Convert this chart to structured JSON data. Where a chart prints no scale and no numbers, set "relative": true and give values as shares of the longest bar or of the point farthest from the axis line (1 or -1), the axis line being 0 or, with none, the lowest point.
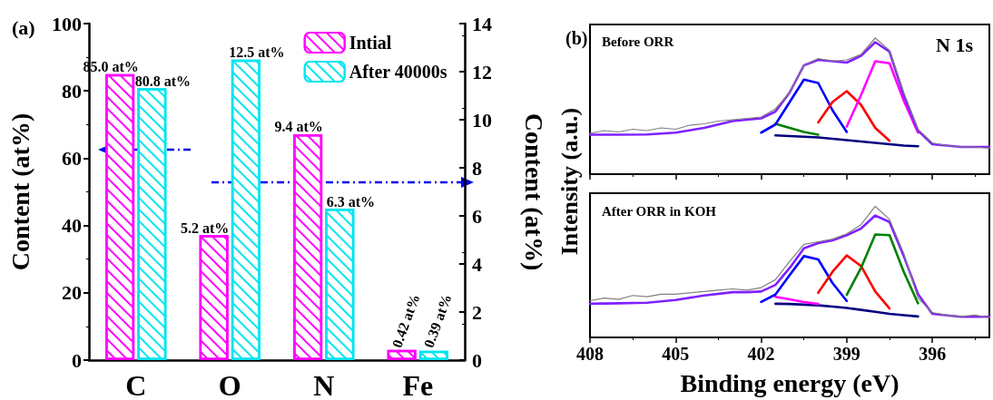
{
  "chart_data": [
    {
      "type": "bar",
      "title": "(a)",
      "categories": [
        "C",
        "O",
        "N",
        "Fe"
      ],
      "ylabel": "Content (at%)",
      "y2label": "Content (at%)",
      "ylim": [
        0,
        100
      ],
      "yticks": [
        0,
        20,
        40,
        60,
        80,
        100
      ],
      "y2lim": [
        0,
        14
      ],
      "y2ticks": [
        0,
        2,
        4,
        6,
        8,
        10,
        12,
        14
      ],
      "legend": "top right",
      "grid": false,
      "series": [
        {
          "name": "Intial",
          "color": "#ff00ff",
          "values": [
            85.0,
            null,
            null,
            null
          ],
          "value_labels": [
            "85.0 at%",
            null,
            null,
            null
          ]
        },
        {
          "name": "After 40000s",
          "color": "#00e5ee",
          "values": [
            80.8,
            null,
            null,
            null
          ],
          "value_labels": [
            "80.8 at%",
            null,
            null,
            null
          ]
        },
        {
          "color": "#ff00ff",
          "axis": "y2",
          "values": [
            null,
            5.2,
            9.4,
            0.42
          ],
          "value_labels": [
            null,
            "5.2 at%",
            "9.4 at%",
            "0.42 at%"
          ]
        },
        {
          "color": "#00e5ee",
          "axis": "y2",
          "values": [
            null,
            12.5,
            6.3,
            0.39
          ],
          "value_labels": [
            null,
            "12.5 at%",
            "6.3 at%",
            "0.39 at%"
          ]
        }
      ]
    },
    {
      "type": "line",
      "title": "(b)",
      "relative": true,
      "ylabel": "Intensity (a.u.)",
      "annotations": [
        "Before ORR",
        "N 1s"
      ],
      "xlim": [
        408,
        394
      ],
      "xticks": [
        408,
        405,
        402,
        399,
        396
      ],
      "tick_labels": false,
      "marker": "none",
      "line_style": "solid",
      "grid": false,
      "x": [
        408,
        407,
        406,
        405,
        404,
        403,
        402.5,
        402,
        401.5,
        401,
        400.5,
        400,
        399.5,
        399,
        398.5,
        398,
        397.5,
        397,
        396.5,
        396,
        395,
        394
      ],
      "series": [
        {
          "color": "#808080",
          "x": [
            408,
            407.5,
            407,
            406.5,
            406,
            405.5,
            405,
            404.5,
            404,
            403.5,
            403,
            402.5,
            402,
            401.5,
            401,
            400.5,
            400,
            399.5,
            399,
            398.5,
            398,
            397.5,
            397,
            396.5,
            396,
            395.5,
            395,
            394.5,
            394
          ],
          "values": [
            0.3,
            0.32,
            0.31,
            0.33,
            0.32,
            0.34,
            0.33,
            0.36,
            0.37,
            0.39,
            0.4,
            0.41,
            0.42,
            0.48,
            0.6,
            0.8,
            0.85,
            0.83,
            0.84,
            0.88,
            1.0,
            0.91,
            0.6,
            0.33,
            0.23,
            0.21,
            0.2,
            0.2,
            0.19
          ]
        },
        {
          "color": "#000080",
          "x": [
            401.5,
            401,
            400.5,
            400,
            399.5,
            399,
            398.5,
            398,
            397.5,
            397,
            396.5
          ],
          "values": [
            0.285,
            0.28,
            0.275,
            0.27,
            0.26,
            0.25,
            0.24,
            0.23,
            0.22,
            0.21,
            0.205
          ]
        },
        {
          "color": "#008000",
          "x": [
            401.5,
            401,
            400.5,
            400
          ],
          "values": [
            0.37,
            0.34,
            0.31,
            0.29
          ]
        },
        {
          "color": "#0000ff",
          "x": [
            402,
            401.5,
            401,
            400.5,
            400,
            399.5,
            399
          ],
          "values": [
            0.305,
            0.365,
            0.53,
            0.695,
            0.67,
            0.47,
            0.31
          ]
        },
        {
          "color": "#ff0000",
          "x": [
            400,
            399.5,
            399,
            398.5,
            398,
            397.5
          ],
          "values": [
            0.38,
            0.53,
            0.61,
            0.51,
            0.34,
            0.245
          ]
        },
        {
          "color": "#ff00ff",
          "x": [
            399,
            398.5,
            398,
            397.5,
            397,
            396.5
          ],
          "values": [
            0.35,
            0.58,
            0.83,
            0.815,
            0.54,
            0.305
          ]
        },
        {
          "color": "#8020ff",
          "values": [
            0.29,
            0.29,
            0.292,
            0.305,
            0.34,
            0.39,
            0.4,
            0.41,
            0.46,
            0.6,
            0.8,
            0.84,
            0.83,
            0.82,
            0.87,
            0.97,
            0.9,
            0.58,
            0.32,
            0.22,
            0.2,
            0.2
          ]
        }
      ]
    },
    {
      "type": "line",
      "relative": true,
      "xlabel": "Binding energy (eV)",
      "annotations": [
        "After ORR in KOH"
      ],
      "xlim": [
        408,
        394
      ],
      "xticks": [
        408,
        405,
        402,
        399,
        396
      ],
      "tick_labels": "x",
      "marker": "none",
      "line_style": "solid",
      "grid": false,
      "x": [
        408,
        407,
        406,
        405,
        404,
        403,
        402.5,
        402,
        401.5,
        401,
        400.5,
        400,
        399.5,
        399,
        398.5,
        398,
        397.5,
        397,
        396.5,
        396,
        395,
        394
      ],
      "series": [
        {
          "color": "#808080",
          "x": [
            408,
            407.5,
            407,
            406.5,
            406,
            405.5,
            405,
            404.5,
            404,
            403.5,
            403,
            402.5,
            402,
            401.5,
            401,
            400.5,
            400,
            399.5,
            399,
            398.5,
            398,
            397.5,
            397,
            396.5,
            396,
            395.5,
            395,
            394.5,
            394
          ],
          "values": [
            0.28,
            0.3,
            0.29,
            0.32,
            0.31,
            0.33,
            0.33,
            0.34,
            0.35,
            0.36,
            0.37,
            0.36,
            0.38,
            0.44,
            0.58,
            0.71,
            0.73,
            0.75,
            0.79,
            0.86,
            1.0,
            0.9,
            0.64,
            0.3,
            0.19,
            0.17,
            0.16,
            0.17,
            0.15
          ]
        },
        {
          "color": "#000080",
          "x": [
            401.5,
            401,
            400.5,
            400,
            399.5,
            399,
            398.5,
            398,
            397.5,
            397,
            396.5
          ],
          "values": [
            0.257,
            0.255,
            0.25,
            0.245,
            0.235,
            0.225,
            0.21,
            0.195,
            0.18,
            0.17,
            0.16
          ]
        },
        {
          "color": "#ff00ff",
          "x": [
            401.5,
            401,
            400.5,
            400
          ],
          "values": [
            0.31,
            0.29,
            0.27,
            0.255
          ]
        },
        {
          "color": "#0000ff",
          "x": [
            402,
            401.5,
            401,
            400.5,
            400,
            399.5,
            399
          ],
          "values": [
            0.27,
            0.327,
            0.475,
            0.62,
            0.595,
            0.415,
            0.278
          ]
        },
        {
          "color": "#ff0000",
          "x": [
            400,
            399.5,
            399,
            398.5,
            398,
            397.5
          ],
          "values": [
            0.34,
            0.5,
            0.625,
            0.545,
            0.35,
            0.22
          ]
        },
        {
          "color": "#008000",
          "x": [
            399,
            398.5,
            398,
            397.5,
            397,
            396.5
          ],
          "values": [
            0.325,
            0.53,
            0.785,
            0.78,
            0.5,
            0.26
          ]
        },
        {
          "color": "#8020ff",
          "values": [
            0.257,
            0.26,
            0.265,
            0.285,
            0.32,
            0.345,
            0.345,
            0.35,
            0.4,
            0.53,
            0.68,
            0.72,
            0.74,
            0.78,
            0.83,
            0.93,
            0.88,
            0.62,
            0.33,
            0.18,
            0.157,
            0.157
          ]
        }
      ]
    }
  ]
}
